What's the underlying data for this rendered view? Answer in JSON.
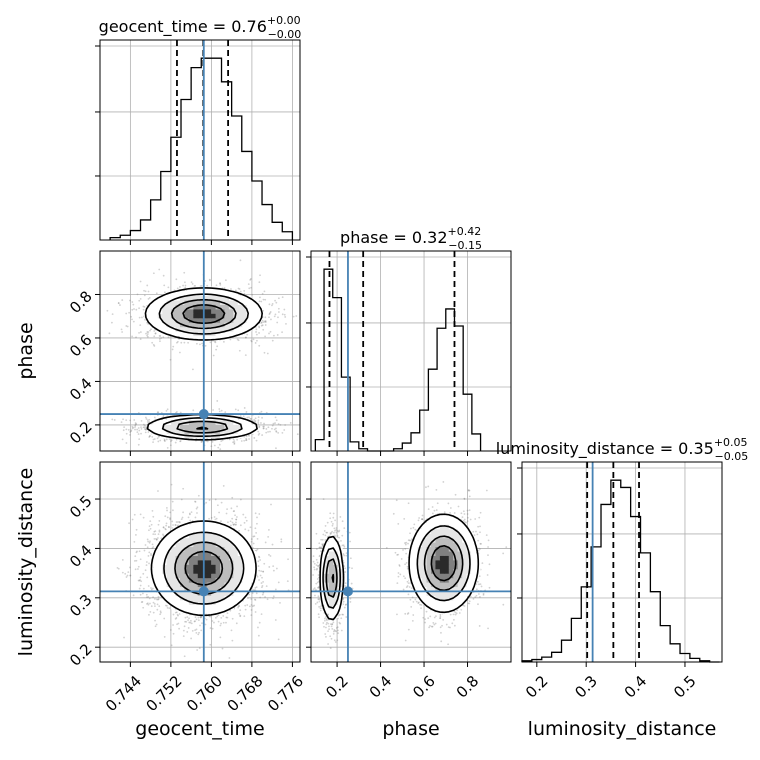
{
  "chart_data": {
    "type": "corner",
    "parameters": [
      "geocent_time",
      "phase",
      "luminosity_distance"
    ],
    "axis_labels": [
      "geocent_time",
      "phase",
      "luminosity_distance"
    ],
    "ranges": {
      "geocent_time": [
        0.738,
        0.7775
      ],
      "phase": [
        0.08,
        1.0
      ],
      "luminosity_distance": [
        0.17,
        0.575
      ]
    },
    "ticks": {
      "geocent_time": [
        "0.744",
        "0.752",
        "0.760",
        "0.768",
        "0.776"
      ],
      "phase": [
        "0.2",
        "0.4",
        "0.6",
        "0.8"
      ],
      "luminosity_distance": [
        "0.2",
        "0.3",
        "0.4",
        "0.5"
      ]
    },
    "titles": [
      {
        "name": "geocent_time",
        "value": "0.76",
        "plus": "+0.00",
        "minus": "−0.00"
      },
      {
        "name": "phase",
        "value": "0.32",
        "plus": "+0.42",
        "minus": "−0.15"
      },
      {
        "name": "luminosity_distance",
        "value": "0.35",
        "plus": "+0.05",
        "minus": "−0.05"
      }
    ],
    "truths": {
      "geocent_time": 0.7585,
      "phase": 0.25,
      "luminosity_distance": 0.313
    },
    "quantiles": {
      "geocent_time": [
        0.7532,
        0.7584,
        0.7633
      ],
      "phase": [
        0.165,
        0.32,
        0.74
      ],
      "luminosity_distance": [
        0.302,
        0.355,
        0.407
      ]
    },
    "histograms": {
      "geocent_time": {
        "edges": [
          0.74,
          0.742,
          0.744,
          0.746,
          0.748,
          0.75,
          0.752,
          0.754,
          0.756,
          0.758,
          0.76,
          0.762,
          0.764,
          0.766,
          0.768,
          0.77,
          0.772,
          0.774,
          0.776
        ],
        "counts": [
          2,
          4,
          8,
          17,
          34,
          58,
          87,
          119,
          146,
          154,
          154,
          134,
          105,
          75,
          50,
          30,
          15,
          7
        ]
      },
      "phase": {
        "edges": [
          0.1,
          0.14,
          0.18,
          0.22,
          0.26,
          0.3,
          0.34,
          0.38,
          0.42,
          0.46,
          0.5,
          0.54,
          0.58,
          0.62,
          0.66,
          0.7,
          0.74,
          0.78,
          0.82,
          0.86
        ],
        "counts": [
          10,
          160,
          135,
          65,
          8,
          2,
          0,
          0,
          0,
          2,
          7,
          16,
          36,
          72,
          108,
          125,
          110,
          50,
          15
        ]
      },
      "luminosity_distance": {
        "edges": [
          0.17,
          0.19,
          0.21,
          0.23,
          0.25,
          0.27,
          0.29,
          0.31,
          0.33,
          0.35,
          0.37,
          0.39,
          0.41,
          0.43,
          0.45,
          0.47,
          0.49,
          0.51,
          0.53,
          0.55,
          0.57
        ],
        "counts": [
          1,
          2,
          4,
          8,
          18,
          36,
          62,
          95,
          130,
          150,
          144,
          120,
          90,
          58,
          30,
          15,
          7,
          3,
          1,
          0
        ]
      }
    },
    "modes": {
      "phase_vs_geocent_time": [
        {
          "x": 0.7585,
          "y": 0.71,
          "sx": 0.0058,
          "sy": 0.06,
          "w": 0.55
        },
        {
          "x": 0.7582,
          "y": 0.19,
          "sx": 0.0058,
          "sy": 0.03,
          "w": 0.45
        }
      ],
      "luminosity_distance_vs_geocent_time": [
        {
          "x": 0.7585,
          "y": 0.36,
          "sx": 0.0052,
          "sy": 0.048,
          "w": 1.0
        }
      ],
      "luminosity_distance_vs_phase": [
        {
          "x": 0.175,
          "y": 0.34,
          "sx": 0.028,
          "sy": 0.045,
          "w": 0.45
        },
        {
          "x": 0.69,
          "y": 0.37,
          "sx": 0.08,
          "sy": 0.05,
          "w": 0.55
        }
      ]
    },
    "colors": {
      "truth": "#4682b4",
      "hist": "#000000",
      "grid": "#b0b0b0",
      "sample": "#7f7f7f"
    },
    "grid": true
  }
}
